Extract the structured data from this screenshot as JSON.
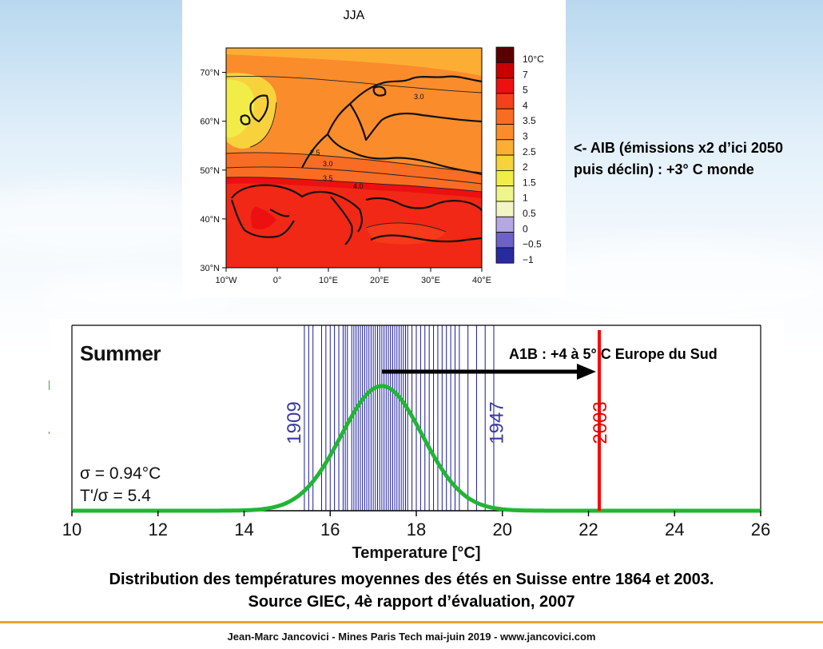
{
  "chart_data": [
    {
      "type": "heatmap",
      "title": "JJA",
      "x_ticks": [
        "10°W",
        "0°",
        "10°E",
        "20°E",
        "30°E",
        "40°E"
      ],
      "x_range": [
        -10,
        40
      ],
      "y_ticks": [
        "30°N",
        "40°N",
        "50°N",
        "60°N",
        "70°N"
      ],
      "y_range": [
        30,
        75
      ],
      "contour_labels": [
        "3.0",
        "2.5",
        "3.0",
        "3.5",
        "4.0"
      ],
      "colorbar": {
        "labels": [
          "10°C",
          "7",
          "5",
          "4",
          "3.5",
          "3",
          "2.5",
          "2",
          "1.5",
          "1",
          "0.5",
          "0",
          "−0.5",
          "−1"
        ],
        "colors": [
          "#5a0000",
          "#c80000",
          "#ec1010",
          "#f6401c",
          "#f86c24",
          "#fa8c2c",
          "#fcae34",
          "#f8d23c",
          "#f2ec48",
          "#eef58a",
          "#f4f5c4",
          "#b6a6e2",
          "#6e62c6",
          "#2a2aa0"
        ]
      }
    },
    {
      "type": "line",
      "title": "Summer",
      "xlabel": "Temperature [°C]",
      "xlim": [
        10,
        26
      ],
      "x_ticks": [
        10,
        12,
        14,
        16,
        18,
        20,
        22,
        24,
        26
      ],
      "series": [
        {
          "color": "#22b534",
          "mean": 17.2,
          "sigma": 0.94
        }
      ],
      "observed_summers": [
        15.4,
        15.5,
        15.6,
        15.8,
        15.9,
        16.0,
        16.1,
        16.2,
        16.3,
        16.35,
        16.4,
        16.5,
        16.55,
        16.6,
        16.65,
        16.7,
        16.75,
        16.8,
        16.85,
        16.9,
        16.95,
        17.0,
        17.05,
        17.1,
        17.15,
        17.2,
        17.25,
        17.3,
        17.35,
        17.4,
        17.45,
        17.5,
        17.55,
        17.6,
        17.65,
        17.7,
        17.75,
        17.8,
        17.9,
        18.0,
        18.1,
        18.2,
        18.3,
        18.4,
        18.5,
        18.6,
        18.7,
        18.8,
        18.9,
        19.0,
        19.2,
        19.4,
        19.6,
        19.8
      ],
      "annotations": {
        "year_low": {
          "label": "1909",
          "x": 15.4
        },
        "year_high": {
          "label": "1947",
          "x": 19.85
        },
        "year_2003": {
          "label": "2003",
          "x": 22.25
        },
        "sigma_text": "σ = 0.94°C",
        "ratio_text": "T'/σ = 5.4",
        "a1b_text": "A1B : +4 à 5°  C Europe du Sud",
        "arrow": {
          "from": 17.2,
          "to": 22.25
        }
      }
    }
  ],
  "side_note": "<- AIB (émissions x2 d’ici 2050 puis déclin) : +3°  C monde",
  "caption": {
    "line1": "Distribution des températures moyennes des étés en Suisse entre 1864 et 2003.",
    "line2": "Source GIEC, 4è rapport d’évaluation, 2007"
  },
  "footer": "Jean-Marc Jancovici - Mines Paris Tech mai-juin 2019 - www.jancovici.com"
}
